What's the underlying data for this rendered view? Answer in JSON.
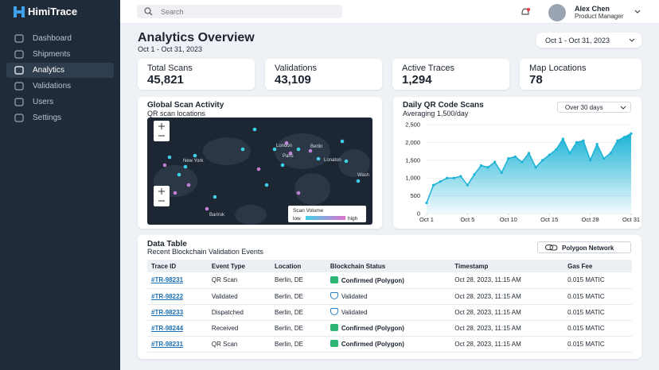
{
  "brand": "HimiTrace",
  "search_placeholder": "Search",
  "user": {
    "name": "Alex Chen",
    "role": "Product Manager"
  },
  "nav": [
    "Dashboard",
    "Shipments",
    "Analytics",
    "Validations",
    "Users",
    "Settings"
  ],
  "active_nav": 2,
  "header": {
    "title": "Analytics Overview",
    "subtitle": "Oct 1 - Oct 31, 2023",
    "date_range": "Oct 1 - Oct 31, 2023"
  },
  "stats": [
    {
      "label": "Total Scans",
      "value": "45,821"
    },
    {
      "label": "Validations",
      "value": "43,109"
    },
    {
      "label": "Active Traces",
      "value": "1,294"
    },
    {
      "label": "Map Locations",
      "value": "78"
    }
  ],
  "map": {
    "title": "Global Scan Activity",
    "subtitle": "QR scan locations",
    "places": [
      "London",
      "Berlin",
      "New York",
      "Paris",
      "Lonaton",
      "Wash",
      "Barirok"
    ],
    "legend": {
      "title": "Scan Volume",
      "low": "low",
      "high": "high"
    }
  },
  "chart_data": {
    "type": "area",
    "title": "Daily QR Code Scans",
    "subtitle": "Averaging 1,500/day",
    "period": "Over 30 days",
    "color": "#1bb3d6",
    "x": [
      0,
      1,
      2,
      3,
      4,
      5,
      6,
      7,
      8,
      9,
      10,
      11,
      12,
      13,
      14,
      15,
      16,
      17,
      18,
      19,
      20,
      21,
      22,
      23,
      24,
      25,
      26,
      27,
      28,
      29,
      30
    ],
    "values": [
      300,
      800,
      900,
      1000,
      1000,
      1050,
      800,
      1100,
      1350,
      1300,
      1450,
      1150,
      1550,
      1600,
      1450,
      1700,
      1300,
      1500,
      1650,
      1800,
      2100,
      1700,
      2000,
      2050,
      1500,
      1950,
      1550,
      1700,
      2050,
      2150,
      2250
    ],
    "xlim": [
      0,
      30
    ],
    "xticks": [
      {
        "value": 0,
        "label": "Oct 1"
      },
      {
        "value": 6,
        "label": "Oct 5"
      },
      {
        "value": 12,
        "label": "Oct 10"
      },
      {
        "value": 18,
        "label": "Oct 15"
      },
      {
        "value": 24,
        "label": "Oct 28"
      },
      {
        "value": 30,
        "label": "Oct 31"
      }
    ],
    "ylim": [
      0,
      2500
    ],
    "yticks": [
      0,
      {
        "value": 500,
        "label": "500"
      },
      {
        "value": 1000,
        "label": "1,000"
      },
      {
        "value": 1500,
        "label": "1,500"
      },
      {
        "value": 2000,
        "label": "2,000"
      },
      {
        "value": 2500,
        "label": "2,500"
      }
    ],
    "grid": true
  },
  "table": {
    "title": "Data Table",
    "subtitle": "Recent Blockchain Validation Events",
    "network": "Polygon Network",
    "columns": [
      "Trace ID",
      "Event Type",
      "Location",
      "Blockchain Status",
      "Timestamp",
      "Gas Fee"
    ],
    "rows": [
      [
        "#TR-98231",
        "QR Scan",
        "Berlin, DE",
        "Confirmed (Polygon)",
        "Oct 28, 2023, 11:15 AM",
        "0.015 MATIC"
      ],
      [
        "#TR-98222",
        "Validated",
        "Berlin, DE",
        "Validated",
        "Oct 28, 2023, 11:15 AM",
        "0.015 MATIC"
      ],
      [
        "#TR-98233",
        "Dispatched",
        "Berlin, DE",
        "Validated",
        "Oct 28, 2023, 11:15 AM",
        "0.015 MATIC"
      ],
      [
        "#TR-98244",
        "Received",
        "Berlin, DE",
        "Confirmed (Polygon)",
        "Oct 28, 2023, 11:15 AM",
        "0.015 MATIC"
      ],
      [
        "#TR-98231",
        "QR Scan",
        "Berlin, DE",
        "Confirmed (Polygon)",
        "Oct 28, 2023, 11:15 AM",
        "0.015 MATIC"
      ]
    ]
  }
}
